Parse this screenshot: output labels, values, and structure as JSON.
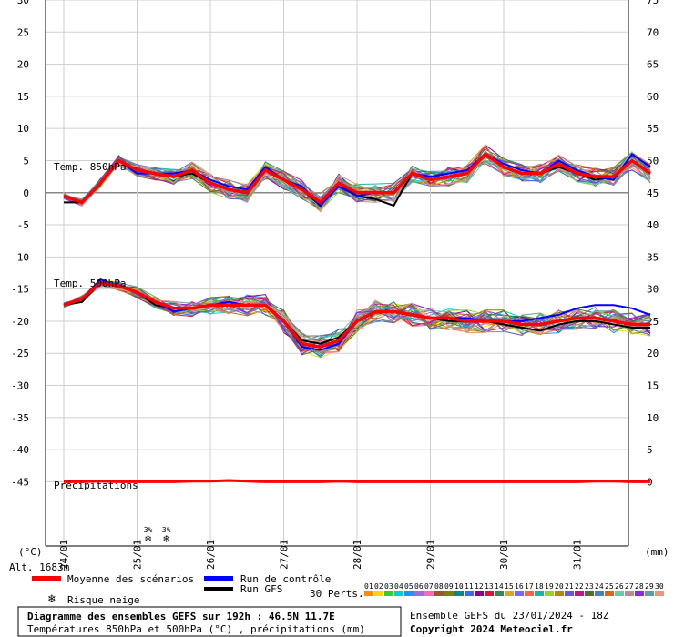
{
  "chart_data": {
    "type": "line",
    "title": "Diagramme des ensembles GEFS sur 192h : 46.5N 11.7E",
    "subtitle": "Températures 850hPa et 500hPa (°C) , précipitations (mm)",
    "run_info": "Ensemble GEFS du 23/01/2024 - 18Z",
    "copyright": "Copyright 2024 Meteociel.fr",
    "altitude": "Alt. 1683m",
    "left_unit": "(°C)",
    "right_unit": "(mm)",
    "y_left": {
      "min": -55,
      "max": 30,
      "ticks": [
        30,
        25,
        20,
        15,
        10,
        5,
        0,
        -5,
        -10,
        -15,
        -20,
        -25,
        -30,
        -35,
        -40,
        -45
      ]
    },
    "y_right_ticks": [
      {
        "label": "75",
        "at": 30
      },
      {
        "label": "70",
        "at": 25
      },
      {
        "label": "65",
        "at": 20
      },
      {
        "label": "60",
        "at": 15
      },
      {
        "label": "55",
        "at": 10
      },
      {
        "label": "50",
        "at": 5
      },
      {
        "label": "45",
        "at": 0
      },
      {
        "label": "40",
        "at": -5
      },
      {
        "label": "35",
        "at": -10
      },
      {
        "label": "30",
        "at": -15
      },
      {
        "label": "25",
        "at": -20
      },
      {
        "label": "20",
        "at": -25
      },
      {
        "label": "15",
        "at": -30
      },
      {
        "label": "10",
        "at": -35
      },
      {
        "label": "5",
        "at": -40
      },
      {
        "label": "0",
        "at": -45
      }
    ],
    "x_dates": [
      "24/01",
      "25/01",
      "26/01",
      "27/01",
      "28/01",
      "29/01",
      "30/01",
      "31/01"
    ],
    "panel_labels": {
      "t850": "Temp. 850hPa",
      "t500": "Temp. 500hPa",
      "precip": "Précipitations"
    },
    "legend": {
      "mean": "Moyenne des scénarios",
      "control": "Run de contrôle",
      "gfs": "Run GFS",
      "snow": "Risque neige",
      "perts": "30 Perts.",
      "pert_ids": [
        "01",
        "02",
        "03",
        "04",
        "05",
        "06",
        "07",
        "08",
        "09",
        "10",
        "11",
        "12",
        "13",
        "14",
        "15",
        "16",
        "17",
        "18",
        "19",
        "20",
        "21",
        "22",
        "23",
        "24",
        "25",
        "26",
        "27",
        "28",
        "29",
        "30"
      ]
    },
    "colors": {
      "mean": "#ff0000",
      "control": "#0000ff",
      "gfs": "#000000"
    },
    "pert_colors": [
      "#ff8c00",
      "#ffd700",
      "#32cd32",
      "#00ced1",
      "#1e90ff",
      "#9370db",
      "#ff69b4",
      "#a0522d",
      "#808000",
      "#008b8b",
      "#4169e1",
      "#8b008b",
      "#dc143c",
      "#2e8b57",
      "#daa520",
      "#7b68ee",
      "#ff6347",
      "#20b2aa",
      "#9acd32",
      "#b8860b",
      "#6a5acd",
      "#c71585",
      "#556b2f",
      "#4682b4",
      "#d2691e",
      "#66cdaa",
      "#bc8f8f",
      "#8a2be2",
      "#5f9ea0",
      "#e9967a"
    ],
    "snow_risk": [
      {
        "date_index": 1.15,
        "label": "3%"
      },
      {
        "date_index": 1.4,
        "label": "3%"
      }
    ],
    "x_steps_6h": 33,
    "t850_mean": [
      -0.5,
      -1.5,
      1.5,
      5,
      3.5,
      3,
      2.5,
      3.5,
      1.5,
      0.5,
      0,
      3.5,
      2,
      0.5,
      -1.5,
      1.5,
      0,
      0,
      0,
      3,
      2,
      2.5,
      3,
      6,
      4,
      3,
      3,
      4.5,
      3,
      2.5,
      2.5,
      5,
      3
    ],
    "t850_control": [
      -0.5,
      -1.5,
      1.5,
      5,
      3,
      3,
      3,
      3.5,
      2,
      1,
      0.5,
      4,
      2,
      1,
      -2,
      1,
      -0.5,
      0,
      0,
      3,
      2.5,
      3,
      3.5,
      6,
      4.5,
      3.5,
      3,
      5,
      3.5,
      2.5,
      2,
      6,
      4
    ],
    "t850_gfs": [
      -1.5,
      -1.5,
      1.5,
      5,
      3.5,
      3,
      2.5,
      3,
      1.5,
      0.5,
      0,
      3.5,
      2,
      0.5,
      -2,
      1.5,
      -0.5,
      -1,
      -2,
      3,
      2,
      2.5,
      3,
      6,
      4,
      3,
      3,
      4,
      3,
      2,
      2.5,
      5,
      3
    ],
    "t500_mean": [
      -17.5,
      -16.5,
      -14,
      -14.5,
      -15.5,
      -17,
      -18,
      -18,
      -17.5,
      -17.5,
      -17.5,
      -17.5,
      -20,
      -23.5,
      -24,
      -23,
      -20,
      -18.5,
      -18.5,
      -19,
      -19.5,
      -19.5,
      -20,
      -20,
      -20,
      -20.5,
      -20.5,
      -20,
      -19.5,
      -19.5,
      -20,
      -20.5,
      -20.5
    ],
    "t500_control": [
      -17.5,
      -16.5,
      -13.5,
      -14.5,
      -15.5,
      -17,
      -18.5,
      -18,
      -17.5,
      -17,
      -17.5,
      -17.5,
      -20,
      -24,
      -24.5,
      -23.5,
      -20,
      -18.5,
      -18.5,
      -19,
      -19.5,
      -19.5,
      -19.5,
      -20,
      -20,
      -20,
      -19.5,
      -19,
      -18,
      -17.5,
      -17.5,
      -18,
      -19
    ],
    "t500_gfs": [
      -17.5,
      -17,
      -14,
      -14.5,
      -15.5,
      -17.5,
      -18,
      -18,
      -17.5,
      -17.5,
      -17.5,
      -17.5,
      -20,
      -23,
      -23.5,
      -22.5,
      -20,
      -18.5,
      -18.5,
      -19,
      -19.5,
      -20,
      -20,
      -20,
      -20.5,
      -21,
      -21.5,
      -20.5,
      -20,
      -20,
      -20.5,
      -21,
      -21
    ],
    "precip_mean": [
      0,
      0,
      0.1,
      0,
      0,
      0,
      0,
      0.1,
      0.1,
      0.2,
      0.1,
      0,
      0,
      0,
      0,
      0.1,
      0,
      0,
      0,
      0,
      0,
      0,
      0,
      0,
      0,
      0,
      0,
      0,
      0,
      0.1,
      0.1,
      0,
      0
    ],
    "pert_850_spread": 1.5,
    "pert_500_spread": 1.8
  }
}
